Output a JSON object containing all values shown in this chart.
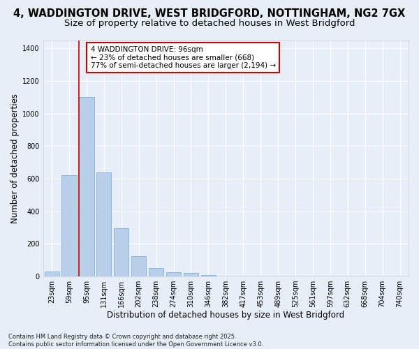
{
  "title_line1": "4, WADDINGTON DRIVE, WEST BRIDGFORD, NOTTINGHAM, NG2 7GX",
  "title_line2": "Size of property relative to detached houses in West Bridgford",
  "xlabel": "Distribution of detached houses by size in West Bridgford",
  "ylabel": "Number of detached properties",
  "categories": [
    "23sqm",
    "59sqm",
    "95sqm",
    "131sqm",
    "166sqm",
    "202sqm",
    "238sqm",
    "274sqm",
    "310sqm",
    "346sqm",
    "382sqm",
    "417sqm",
    "453sqm",
    "489sqm",
    "525sqm",
    "561sqm",
    "597sqm",
    "632sqm",
    "668sqm",
    "704sqm",
    "740sqm"
  ],
  "values": [
    30,
    620,
    1100,
    640,
    295,
    125,
    50,
    25,
    20,
    10,
    0,
    0,
    0,
    0,
    0,
    0,
    0,
    0,
    0,
    0,
    0
  ],
  "bar_color": "#b8d0ea",
  "bar_edge_color": "#6aaad4",
  "annotation_text": "4 WADDINGTON DRIVE: 96sqm\n← 23% of detached houses are smaller (668)\n77% of semi-detached houses are larger (2,194) →",
  "annotation_box_color": "#ffffff",
  "annotation_box_edge_color": "#cc0000",
  "vline_x": 1.57,
  "vline_color": "#cc0000",
  "ylim": [
    0,
    1450
  ],
  "yticks": [
    0,
    200,
    400,
    600,
    800,
    1000,
    1200,
    1400
  ],
  "background_color": "#e8eef8",
  "plot_bg_color": "#e8eef8",
  "grid_color": "#ffffff",
  "footnote": "Contains HM Land Registry data © Crown copyright and database right 2025.\nContains public sector information licensed under the Open Government Licence v3.0.",
  "title_fontsize": 10.5,
  "subtitle_fontsize": 9.5,
  "axis_label_fontsize": 8.5,
  "tick_fontsize": 7,
  "annotation_fontsize": 7.5,
  "footnote_fontsize": 6
}
